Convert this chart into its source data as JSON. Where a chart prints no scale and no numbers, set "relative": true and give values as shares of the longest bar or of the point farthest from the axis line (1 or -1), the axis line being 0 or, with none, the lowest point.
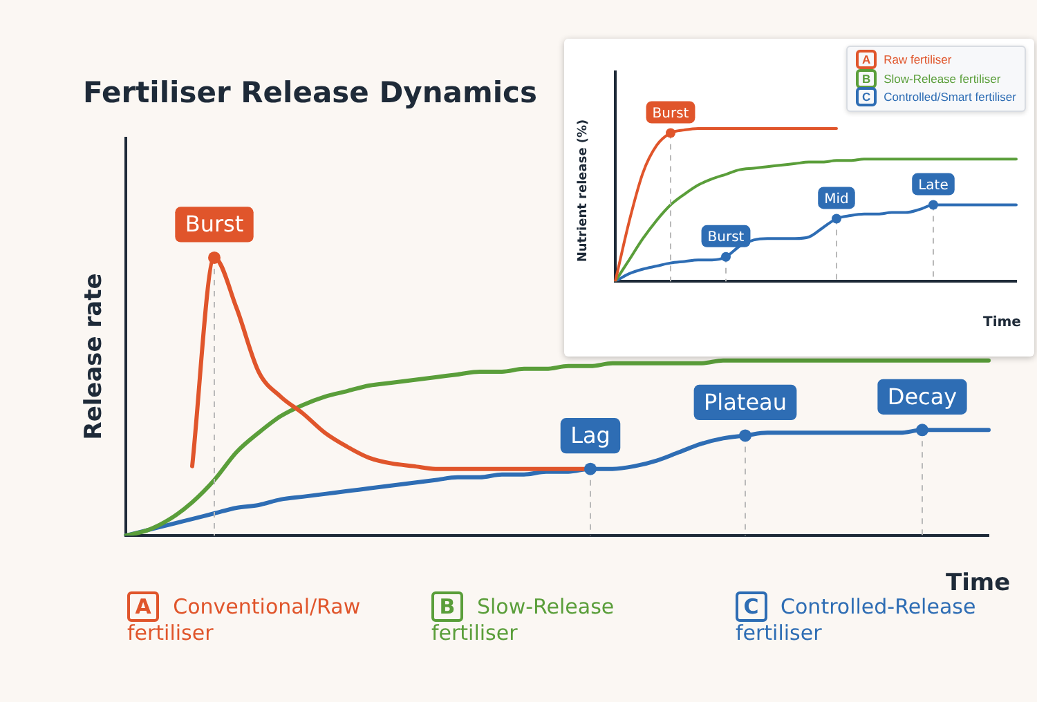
{
  "chart_data": [
    {
      "type": "line",
      "title": "Fertiliser Release Dynamics",
      "xlabel": "Time",
      "ylabel": "Release rate",
      "relative": true,
      "legend": "bottom",
      "categories": [
        null,
        null,
        null,
        null,
        null,
        null,
        null,
        null,
        null,
        null,
        null,
        null,
        null,
        null,
        null,
        null,
        null,
        null,
        null,
        null,
        null,
        null,
        null,
        null,
        null,
        null,
        null,
        null,
        null,
        null,
        null,
        null,
        null,
        null,
        null,
        null,
        null,
        null,
        null,
        null
      ],
      "series": [
        {
          "name": "A Conventional/Raw fertiliser",
          "color": "#e0552b",
          "values": [
            null,
            null,
            null,
            0.25,
            1,
            0.82,
            0.59,
            0.5,
            0.44,
            0.37,
            0.32,
            0.28,
            0.26,
            0.25,
            0.24,
            0.24,
            0.24,
            0.24,
            0.24,
            0.24,
            0.24,
            0.24,
            null,
            null,
            null,
            null,
            null,
            null,
            null,
            null,
            null,
            null,
            null,
            null,
            null,
            null,
            null,
            null,
            null,
            null
          ]
        },
        {
          "name": "B Slow-Release fertiliser",
          "color": "#5a9e3a",
          "values": [
            0,
            0.02,
            0.06,
            0.12,
            0.2,
            0.3,
            0.37,
            0.43,
            0.47,
            0.5,
            0.52,
            0.54,
            0.55,
            0.56,
            0.57,
            0.58,
            0.59,
            0.59,
            0.6,
            0.6,
            0.61,
            0.61,
            0.62,
            0.62,
            0.62,
            0.62,
            0.62,
            0.63,
            0.63,
            0.63,
            0.63,
            0.63,
            0.63,
            0.63,
            0.63,
            0.63,
            0.63,
            0.63,
            0.63,
            0.63
          ]
        },
        {
          "name": "C Controlled-Release fertiliser",
          "color": "#2e6db4",
          "values": [
            0,
            0.02,
            0.04,
            0.06,
            0.08,
            0.1,
            0.11,
            0.13,
            0.14,
            0.15,
            0.16,
            0.17,
            0.18,
            0.19,
            0.2,
            0.21,
            0.21,
            0.22,
            0.22,
            0.23,
            0.23,
            0.24,
            0.24,
            0.25,
            0.27,
            0.3,
            0.33,
            0.35,
            0.36,
            0.37,
            0.37,
            0.37,
            0.37,
            0.37,
            0.37,
            0.37,
            0.38,
            0.38,
            0.38,
            0.38
          ]
        }
      ],
      "annotations": [
        {
          "text": "Burst",
          "y": 1
        },
        {
          "text": "Lag",
          "y": 0.24
        },
        {
          "text": "Plateau",
          "y": 0.36
        },
        {
          "text": "Decay",
          "y": 0.38
        }
      ]
    },
    {
      "type": "line",
      "xlabel": "Time",
      "ylabel": "Nutrient release (%)",
      "relative": true,
      "legend": "top right",
      "categories": [
        null,
        null,
        null,
        null,
        null,
        null,
        null,
        null,
        null,
        null,
        null,
        null,
        null,
        null,
        null,
        null,
        null,
        null,
        null,
        null,
        null,
        null,
        null,
        null,
        null,
        null,
        null,
        null,
        null,
        null
      ],
      "series": [
        {
          "name": "A Raw fertiliser",
          "color": "#e0552b",
          "values": [
            0,
            0.39,
            0.71,
            0.89,
            0.97,
            0.99,
            1,
            1,
            1,
            1,
            1,
            1,
            1,
            1,
            1,
            1,
            1,
            null,
            null,
            null,
            null,
            null,
            null,
            null,
            null,
            null,
            null,
            null,
            null,
            null
          ]
        },
        {
          "name": "B Slow-Release fertiliser",
          "color": "#5a9e3a",
          "values": [
            0,
            0.14,
            0.28,
            0.4,
            0.5,
            0.57,
            0.63,
            0.67,
            0.7,
            0.73,
            0.74,
            0.75,
            0.76,
            0.77,
            0.78,
            0.78,
            0.79,
            0.79,
            0.8,
            0.8,
            0.8,
            0.8,
            0.8,
            0.8,
            0.8,
            0.8,
            0.8,
            0.8,
            0.8,
            0.8
          ]
        },
        {
          "name": "C Controlled/Smart fertiliser",
          "color": "#2e6db4",
          "values": [
            0,
            0.05,
            0.08,
            0.1,
            0.12,
            0.13,
            0.14,
            0.14,
            0.16,
            0.23,
            0.27,
            0.28,
            0.28,
            0.28,
            0.29,
            0.35,
            0.41,
            0.43,
            0.44,
            0.44,
            0.45,
            0.45,
            0.47,
            0.5,
            0.5,
            0.5,
            0.5,
            0.5,
            0.5,
            0.5
          ]
        }
      ],
      "annotations": [
        {
          "text": "Burst",
          "y": 0.97
        },
        {
          "text": "Burst",
          "y": 0.16
        },
        {
          "text": "Mid",
          "y": 0.41
        },
        {
          "text": "Late",
          "y": 0.5
        }
      ]
    }
  ]
}
